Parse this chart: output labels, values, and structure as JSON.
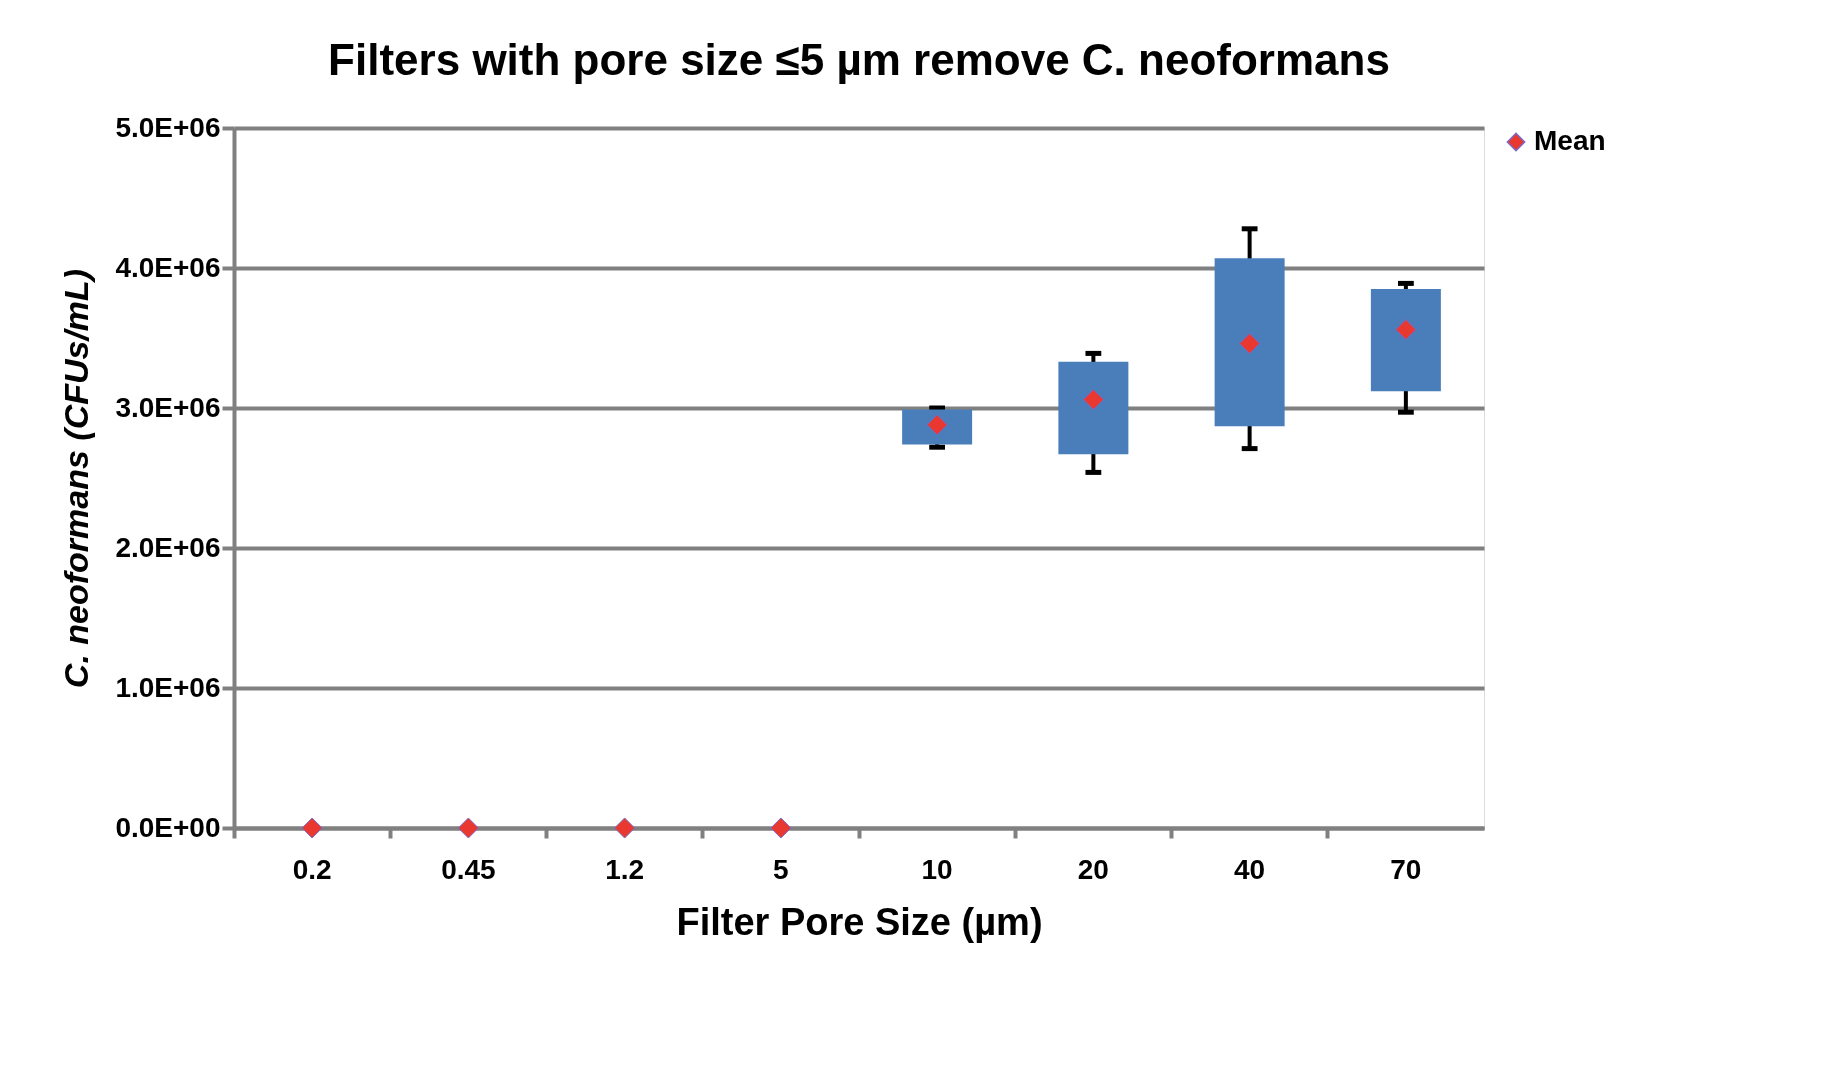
{
  "chart_data": {
    "type": "box",
    "title": "Filters with pore size ≤5 µm remove C. neoformans",
    "xlabel": "Filter Pore Size (µm)",
    "ylabel": "C. neoformans (CFUs/mL)",
    "categories": [
      "0.2",
      "0.45",
      "1.2",
      "5",
      "10",
      "20",
      "40",
      "70"
    ],
    "series": [
      {
        "type": "box",
        "color": "#4a7ebb",
        "boxes": [
          null,
          null,
          null,
          null,
          {
            "low": 2720000.0,
            "q1": 2740000.0,
            "q3": 2990000.0,
            "high": 3000000.0
          },
          {
            "low": 2540000.0,
            "q1": 2670000.0,
            "q3": 3330000.0,
            "high": 3390000.0
          },
          {
            "low": 2710000.0,
            "q1": 2870000.0,
            "q3": 4070000.0,
            "high": 4280000.0
          },
          {
            "low": 2970000.0,
            "q1": 3120000.0,
            "q3": 3850000.0,
            "high": 3890000.0
          }
        ]
      },
      {
        "name": "Mean",
        "type": "scatter",
        "color": "#e8382f",
        "marker": "diamond",
        "values": [
          0,
          0,
          0,
          0,
          2880000.0,
          3060000.0,
          3460000.0,
          3560000.0
        ]
      }
    ],
    "ylim": [
      0,
      5000000.0
    ],
    "yticks": [
      {
        "value": 0,
        "label": "0.0E+00"
      },
      {
        "value": 1000000.0,
        "label": "1.0E+06"
      },
      {
        "value": 2000000.0,
        "label": "2.0E+06"
      },
      {
        "value": 3000000.0,
        "label": "3.0E+06"
      },
      {
        "value": 4000000.0,
        "label": "4.0E+06"
      },
      {
        "value": 5000000.0,
        "label": "5.0E+06"
      }
    ],
    "grid": "y",
    "legend": "right"
  }
}
